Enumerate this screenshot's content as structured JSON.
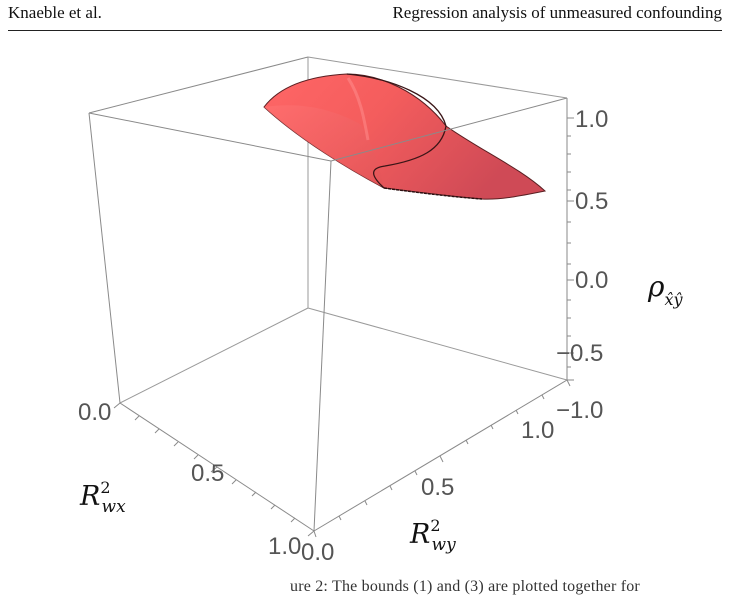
{
  "header": {
    "left": "Knaeble et al.",
    "right": "Regression analysis of unmeasured confounding"
  },
  "chart_data": {
    "type": "surface3d",
    "axes": {
      "x": {
        "label_base": "R",
        "label_sup": "2",
        "label_sub": "wx",
        "ticks": [
          "0.0",
          "0.5",
          "1.0"
        ],
        "range": [
          0,
          1
        ]
      },
      "y": {
        "label_base": "R",
        "label_sup": "2",
        "label_sub": "wy",
        "ticks": [
          "0.0",
          "0.5",
          "1.0"
        ],
        "range": [
          0,
          1
        ]
      },
      "z": {
        "label_base": "ρ",
        "label_sub": "x̂ŷ",
        "ticks": [
          "−1.0",
          "−0.5",
          "0.0",
          "0.5",
          "1.0"
        ],
        "range": [
          -1,
          1
        ]
      }
    },
    "surface_color": "#f25b5b",
    "surface_shade_color": "#d94b53",
    "box_color": "#8a8a8a"
  },
  "caption_fragment": "ure 2: The bounds (1) and (3) are plotted together for"
}
